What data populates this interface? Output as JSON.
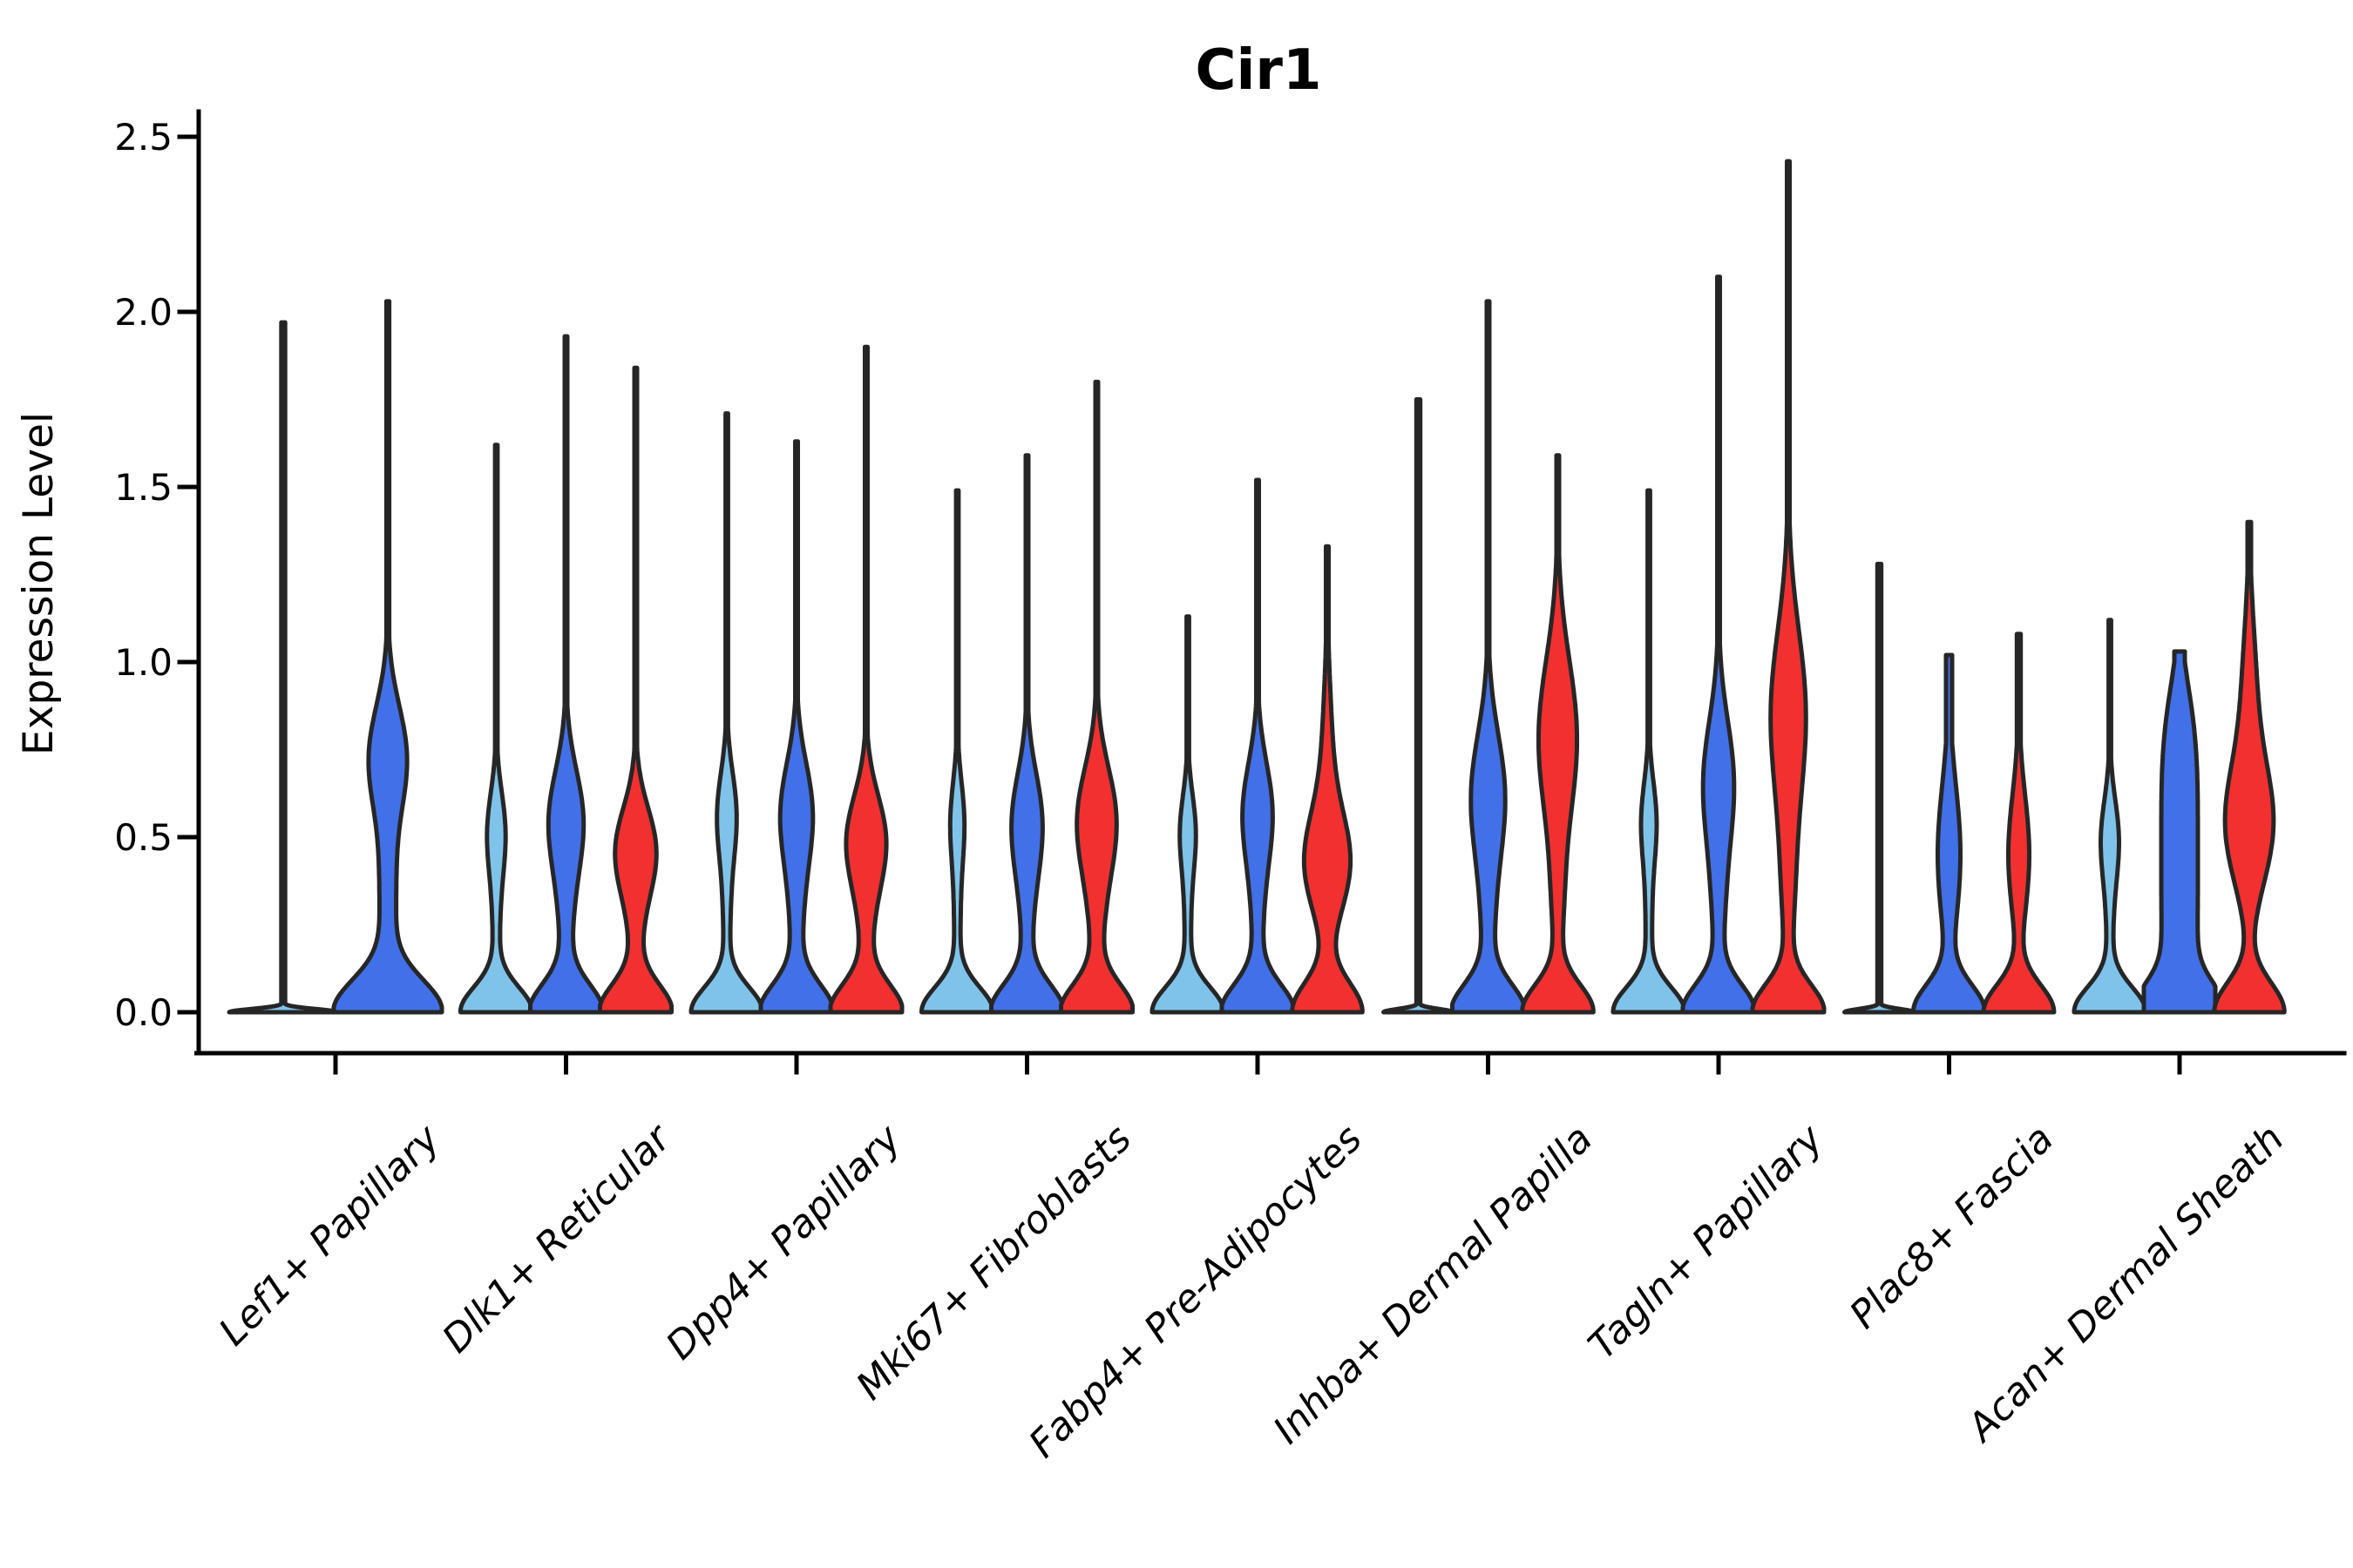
{
  "chart_data": {
    "type": "violin",
    "title": "Cir1",
    "ylabel": "Expression Level",
    "xlabel": "",
    "grid": false,
    "legend": "none",
    "ylim": [
      -0.12,
      2.57
    ],
    "ytick_values": [
      0.0,
      0.5,
      1.0,
      1.5,
      2.0,
      2.5
    ],
    "ytick_labels": [
      "0.0",
      "0.5",
      "1.0",
      "1.5",
      "2.0",
      "2.5"
    ],
    "categories": [
      "Lef1+ Papillary",
      "Dlk1+ Reticular",
      "Dpp4+ Papillary",
      "Mki67+ Fibroblasts",
      "Fabp4+ Pre-Adipocytes",
      "Inhba+ Dermal Papilla",
      "Tagln+ Papillary",
      "Plac8+ Fascia",
      "Acan+ Dermal Sheath"
    ],
    "palette": {
      "light_blue": "#7FC3EB",
      "royal_blue": "#4270E8",
      "red": "#F23030"
    },
    "outline_color": "#262626",
    "groups": [
      {
        "violins": [
          {
            "color": "light_blue",
            "shape": "spike",
            "value_max": 1.97,
            "offset": -60,
            "slotHalf": 62,
            "base": 62,
            "baseSig": 0.013,
            "tip": 2.2,
            "bulges": []
          },
          {
            "color": "royal_blue",
            "shape": "violin",
            "value_max": 2.03,
            "offset": 60,
            "slotHalf": 62,
            "base": 60,
            "baseSig": 0.13,
            "tip": 1.6,
            "bulges": [
              {
                "v": 0.73,
                "w": 21,
                "s": 0.21
              },
              {
                "v": 0.32,
                "w": 9,
                "s": 0.28
              }
            ]
          }
        ]
      },
      {
        "violins": [
          {
            "color": "light_blue",
            "shape": "violin",
            "value_max": 1.62,
            "offset": -80,
            "slotHalf": 41,
            "base": 40,
            "baseSig": 0.1,
            "tip": 1.4,
            "bulges": [
              {
                "v": 0.52,
                "w": 9,
                "s": 0.16
              },
              {
                "v": 0.28,
                "w": 4,
                "s": 0.25
              }
            ]
          },
          {
            "color": "royal_blue",
            "shape": "violin",
            "value_max": 1.93,
            "offset": 0,
            "slotHalf": 41,
            "base": 40,
            "baseSig": 0.11,
            "tip": 1.5,
            "bulges": [
              {
                "v": 0.56,
                "w": 17,
                "s": 0.2
              },
              {
                "v": 0.3,
                "w": 7,
                "s": 0.28
              }
            ]
          },
          {
            "color": "red",
            "shape": "violin",
            "value_max": 1.84,
            "offset": 80,
            "slotHalf": 41,
            "base": 40,
            "baseSig": 0.11,
            "tip": 1.5,
            "bulges": [
              {
                "v": 0.47,
                "w": 19,
                "s": 0.17
              },
              {
                "v": 0.3,
                "w": 7,
                "s": 0.26
              }
            ]
          }
        ]
      },
      {
        "violins": [
          {
            "color": "light_blue",
            "shape": "violin",
            "value_max": 1.71,
            "offset": -80,
            "slotHalf": 41,
            "base": 40,
            "baseSig": 0.1,
            "tip": 1.4,
            "bulges": [
              {
                "v": 0.57,
                "w": 10,
                "s": 0.17
              },
              {
                "v": 0.3,
                "w": 4,
                "s": 0.25
              }
            ]
          },
          {
            "color": "royal_blue",
            "shape": "violin",
            "value_max": 1.63,
            "offset": 0,
            "slotHalf": 41,
            "base": 40,
            "baseSig": 0.11,
            "tip": 1.5,
            "bulges": [
              {
                "v": 0.58,
                "w": 16,
                "s": 0.2
              },
              {
                "v": 0.3,
                "w": 7,
                "s": 0.28
              }
            ]
          },
          {
            "color": "red",
            "shape": "violin",
            "value_max": 1.9,
            "offset": 80,
            "slotHalf": 41,
            "base": 40,
            "baseSig": 0.11,
            "tip": 1.5,
            "bulges": [
              {
                "v": 0.5,
                "w": 19,
                "s": 0.18
              },
              {
                "v": 0.3,
                "w": 7,
                "s": 0.26
              }
            ]
          }
        ]
      },
      {
        "violins": [
          {
            "color": "light_blue",
            "shape": "violin",
            "value_max": 1.49,
            "offset": -80,
            "slotHalf": 41,
            "base": 40,
            "baseSig": 0.1,
            "tip": 1.4,
            "bulges": [
              {
                "v": 0.55,
                "w": 7,
                "s": 0.16
              },
              {
                "v": 0.28,
                "w": 3.5,
                "s": 0.25
              }
            ]
          },
          {
            "color": "royal_blue",
            "shape": "violin",
            "value_max": 1.59,
            "offset": 0,
            "slotHalf": 41,
            "base": 40,
            "baseSig": 0.11,
            "tip": 1.5,
            "bulges": [
              {
                "v": 0.55,
                "w": 15,
                "s": 0.2
              },
              {
                "v": 0.3,
                "w": 6,
                "s": 0.28
              }
            ]
          },
          {
            "color": "red",
            "shape": "violin",
            "value_max": 1.8,
            "offset": 80,
            "slotHalf": 41,
            "base": 40,
            "baseSig": 0.11,
            "tip": 1.5,
            "bulges": [
              {
                "v": 0.56,
                "w": 20,
                "s": 0.21
              },
              {
                "v": 0.3,
                "w": 7,
                "s": 0.26
              }
            ]
          }
        ]
      },
      {
        "violins": [
          {
            "color": "light_blue",
            "shape": "violin",
            "value_max": 1.13,
            "offset": -80,
            "slotHalf": 41,
            "base": 40,
            "baseSig": 0.1,
            "tip": 1.4,
            "bulges": [
              {
                "v": 0.52,
                "w": 8,
                "s": 0.15
              },
              {
                "v": 0.27,
                "w": 3.5,
                "s": 0.24
              }
            ]
          },
          {
            "color": "royal_blue",
            "shape": "violin",
            "value_max": 1.52,
            "offset": 0,
            "slotHalf": 41,
            "base": 40,
            "baseSig": 0.11,
            "tip": 1.5,
            "bulges": [
              {
                "v": 0.58,
                "w": 15,
                "s": 0.2
              },
              {
                "v": 0.3,
                "w": 6,
                "s": 0.28
              }
            ]
          },
          {
            "color": "red",
            "shape": "violin",
            "value_max": 1.33,
            "offset": 80,
            "slotHalf": 41,
            "base": 40,
            "baseSig": 0.12,
            "tip": 1.5,
            "bulges": [
              {
                "v": 0.42,
                "w": 24,
                "s": 0.2
              },
              {
                "v": 0.7,
                "w": 6,
                "s": 0.3
              }
            ]
          }
        ]
      },
      {
        "violins": [
          {
            "color": "light_blue",
            "shape": "spike",
            "value_max": 1.75,
            "offset": -80,
            "slotHalf": 41,
            "base": 40,
            "baseSig": 0.013,
            "tip": 2.2,
            "bulges": []
          },
          {
            "color": "royal_blue",
            "shape": "violin",
            "value_max": 2.03,
            "offset": 0,
            "slotHalf": 41,
            "base": 40,
            "baseSig": 0.11,
            "tip": 1.5,
            "bulges": [
              {
                "v": 0.62,
                "w": 19,
                "s": 0.25
              },
              {
                "v": 0.25,
                "w": 6,
                "s": 0.25
              }
            ]
          },
          {
            "color": "red",
            "shape": "violin",
            "value_max": 1.59,
            "offset": 80,
            "slotHalf": 41,
            "base": 40,
            "baseSig": 0.11,
            "tip": 1.5,
            "bulges": [
              {
                "v": 0.78,
                "w": 22,
                "s": 0.32
              },
              {
                "v": 0.3,
                "w": 5,
                "s": 0.22
              }
            ]
          }
        ]
      },
      {
        "violins": [
          {
            "color": "light_blue",
            "shape": "violin",
            "value_max": 1.49,
            "offset": -80,
            "slotHalf": 41,
            "base": 40,
            "baseSig": 0.1,
            "tip": 1.4,
            "bulges": [
              {
                "v": 0.55,
                "w": 8,
                "s": 0.16
              },
              {
                "v": 0.27,
                "w": 3.5,
                "s": 0.24
              }
            ]
          },
          {
            "color": "royal_blue",
            "shape": "violin",
            "value_max": 2.1,
            "offset": 0,
            "slotHalf": 41,
            "base": 40,
            "baseSig": 0.11,
            "tip": 1.5,
            "bulges": [
              {
                "v": 0.66,
                "w": 17,
                "s": 0.25
              },
              {
                "v": 0.3,
                "w": 6,
                "s": 0.25
              }
            ]
          },
          {
            "color": "red",
            "shape": "violin",
            "value_max": 2.43,
            "offset": 80,
            "slotHalf": 41,
            "base": 40,
            "baseSig": 0.11,
            "tip": 1.5,
            "bulges": [
              {
                "v": 0.85,
                "w": 20,
                "s": 0.34
              },
              {
                "v": 0.35,
                "w": 6,
                "s": 0.28
              }
            ]
          }
        ]
      },
      {
        "violins": [
          {
            "color": "light_blue",
            "shape": "spike",
            "value_max": 1.28,
            "offset": -80,
            "slotHalf": 41,
            "base": 40,
            "baseSig": 0.013,
            "tip": 2.2,
            "bulges": []
          },
          {
            "color": "royal_blue",
            "shape": "violin",
            "value_max": 1.02,
            "offset": 0,
            "slotHalf": 41,
            "base": 40,
            "baseSig": 0.11,
            "tip": 3.5,
            "bulges": [
              {
                "v": 0.45,
                "w": 13,
                "s": 0.28
              }
            ]
          },
          {
            "color": "red",
            "shape": "violin",
            "value_max": 1.08,
            "offset": 80,
            "slotHalf": 41,
            "base": 40,
            "baseSig": 0.11,
            "tip": 2.2,
            "bulges": [
              {
                "v": 0.45,
                "w": 12,
                "s": 0.24
              }
            ]
          }
        ]
      },
      {
        "violins": [
          {
            "color": "light_blue",
            "shape": "violin",
            "value_max": 1.12,
            "offset": -80,
            "slotHalf": 41,
            "base": 40,
            "baseSig": 0.1,
            "tip": 1.4,
            "bulges": [
              {
                "v": 0.5,
                "w": 9,
                "s": 0.16
              },
              {
                "v": 0.27,
                "w": 3.5,
                "s": 0.24
              }
            ]
          },
          {
            "color": "royal_blue",
            "shape": "violin",
            "value_max": 1.03,
            "offset": 0,
            "slotHalf": 41,
            "base": 40,
            "baseSig": 0.11,
            "tip": 6,
            "bulges": [
              {
                "v": 0.45,
                "w": 21,
                "s": 0.52,
                "e": 4
              }
            ]
          },
          {
            "color": "red",
            "shape": "violin",
            "value_max": 1.4,
            "offset": 80,
            "slotHalf": 41,
            "base": 40,
            "baseSig": 0.12,
            "tip": 2,
            "bulges": [
              {
                "v": 0.53,
                "w": 26,
                "s": 0.24
              },
              {
                "v": 0.9,
                "w": 8,
                "s": 0.3
              }
            ]
          }
        ]
      }
    ]
  }
}
